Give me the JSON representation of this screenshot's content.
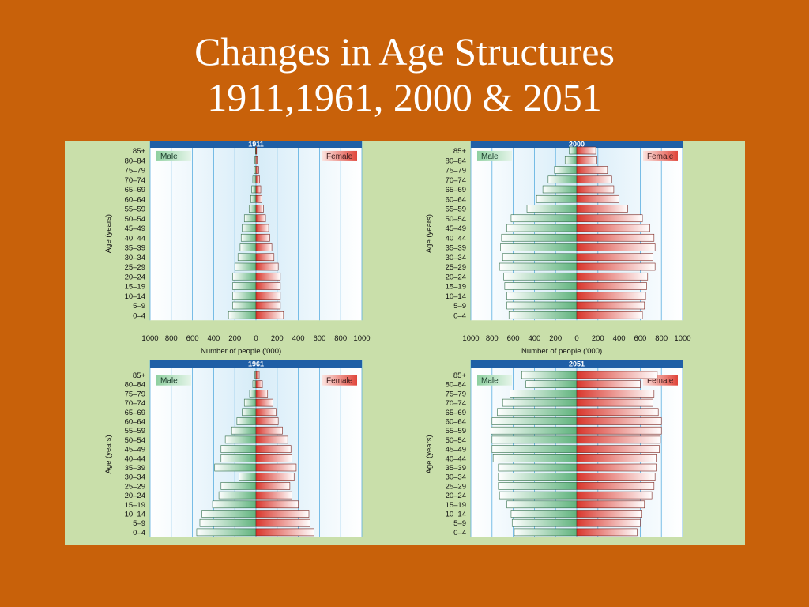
{
  "slide": {
    "title_line1": "Changes in Age Structures",
    "title_line2": "1911,1961, 2000 & 2051"
  },
  "colors": {
    "background": "#c8610a",
    "panel": "#c9dfaa",
    "plot_band": "#e7f4fb",
    "header_bar": "#1f5fa6",
    "male": "#6fbf8a",
    "female": "#e0453a"
  },
  "chart_data": [
    {
      "type": "bar",
      "title": "1911",
      "xlabel": "Number of people ('000)",
      "ylabel": "Age (years)",
      "legend": {
        "male": "Male",
        "female": "Female"
      },
      "xlim": [
        -1000,
        1000
      ],
      "xticks": [
        "1000",
        "800",
        "600",
        "400",
        "200",
        "0",
        "200",
        "400",
        "600",
        "800",
        "1000"
      ],
      "categories": [
        "0–4",
        "5–9",
        "10–14",
        "15–19",
        "20–24",
        "25–29",
        "30–34",
        "35–39",
        "40–44",
        "45–49",
        "50–54",
        "55–59",
        "60–64",
        "65–69",
        "70–74",
        "75–79",
        "80–84",
        "85+"
      ],
      "series": [
        {
          "name": "Male",
          "values": [
            260,
            220,
            220,
            220,
            220,
            200,
            170,
            150,
            140,
            130,
            110,
            65,
            50,
            40,
            30,
            20,
            10,
            5
          ]
        },
        {
          "name": "Female",
          "values": [
            260,
            230,
            230,
            230,
            230,
            210,
            170,
            150,
            130,
            120,
            90,
            70,
            55,
            45,
            35,
            25,
            12,
            6
          ]
        }
      ]
    },
    {
      "type": "bar",
      "title": "2000",
      "xlabel": "Number of people ('000)",
      "ylabel": "Age (years)",
      "legend": {
        "male": "Male",
        "female": "Female"
      },
      "xlim": [
        -1000,
        1000
      ],
      "xticks": [
        "1000",
        "800",
        "600",
        "400",
        "200",
        "0",
        "200",
        "400",
        "600",
        "800",
        "1000"
      ],
      "categories": [
        "0–4",
        "5–9",
        "10–14",
        "15–19",
        "20–24",
        "25–29",
        "30–34",
        "35–39",
        "40–44",
        "45–49",
        "50–54",
        "55–59",
        "60–64",
        "65–69",
        "70–74",
        "75–79",
        "80–84",
        "85+"
      ],
      "series": [
        {
          "name": "Male",
          "values": [
            640,
            660,
            660,
            680,
            690,
            730,
            700,
            720,
            710,
            660,
            620,
            470,
            380,
            320,
            270,
            210,
            110,
            70
          ]
        },
        {
          "name": "Female",
          "values": [
            620,
            640,
            650,
            660,
            670,
            740,
            720,
            740,
            730,
            690,
            620,
            480,
            400,
            350,
            330,
            290,
            190,
            180
          ]
        }
      ]
    },
    {
      "type": "bar",
      "title": "1961",
      "xlabel": "",
      "ylabel": "Age (years)",
      "legend": {
        "male": "Male",
        "female": "Female"
      },
      "xlim": [
        -1000,
        1000
      ],
      "xticks": [],
      "categories": [
        "0–4",
        "5–9",
        "10–14",
        "15–19",
        "20–24",
        "25–29",
        "30–34",
        "35–39",
        "40–44",
        "45–49",
        "50–54",
        "55–59",
        "60–64",
        "65–69",
        "70–74",
        "75–79",
        "80–84",
        "85+"
      ],
      "series": [
        {
          "name": "Male",
          "values": [
            560,
            530,
            510,
            410,
            350,
            330,
            160,
            390,
            330,
            330,
            290,
            230,
            180,
            130,
            110,
            60,
            30,
            10
          ]
        },
        {
          "name": "Female",
          "values": [
            550,
            510,
            500,
            400,
            340,
            320,
            360,
            380,
            340,
            330,
            300,
            250,
            210,
            190,
            160,
            110,
            60,
            30
          ]
        }
      ]
    },
    {
      "type": "bar",
      "title": "2051",
      "xlabel": "",
      "ylabel": "Age (years)",
      "legend": {
        "male": "Male",
        "female": "Female"
      },
      "xlim": [
        -1000,
        1000
      ],
      "xticks": [],
      "categories": [
        "0–4",
        "5–9",
        "10–14",
        "15–19",
        "20–24",
        "25–29",
        "30–34",
        "35–39",
        "40–44",
        "45–49",
        "50–54",
        "55–59",
        "60–64",
        "65–69",
        "70–74",
        "75–79",
        "80–84",
        "85+"
      ],
      "series": [
        {
          "name": "Male",
          "values": [
            590,
            610,
            620,
            660,
            730,
            740,
            740,
            740,
            790,
            800,
            800,
            810,
            800,
            750,
            700,
            630,
            480,
            520
          ]
        },
        {
          "name": "Female",
          "values": [
            570,
            600,
            610,
            640,
            710,
            730,
            740,
            750,
            750,
            780,
            790,
            800,
            800,
            770,
            720,
            730,
            600,
            760
          ]
        }
      ]
    }
  ]
}
